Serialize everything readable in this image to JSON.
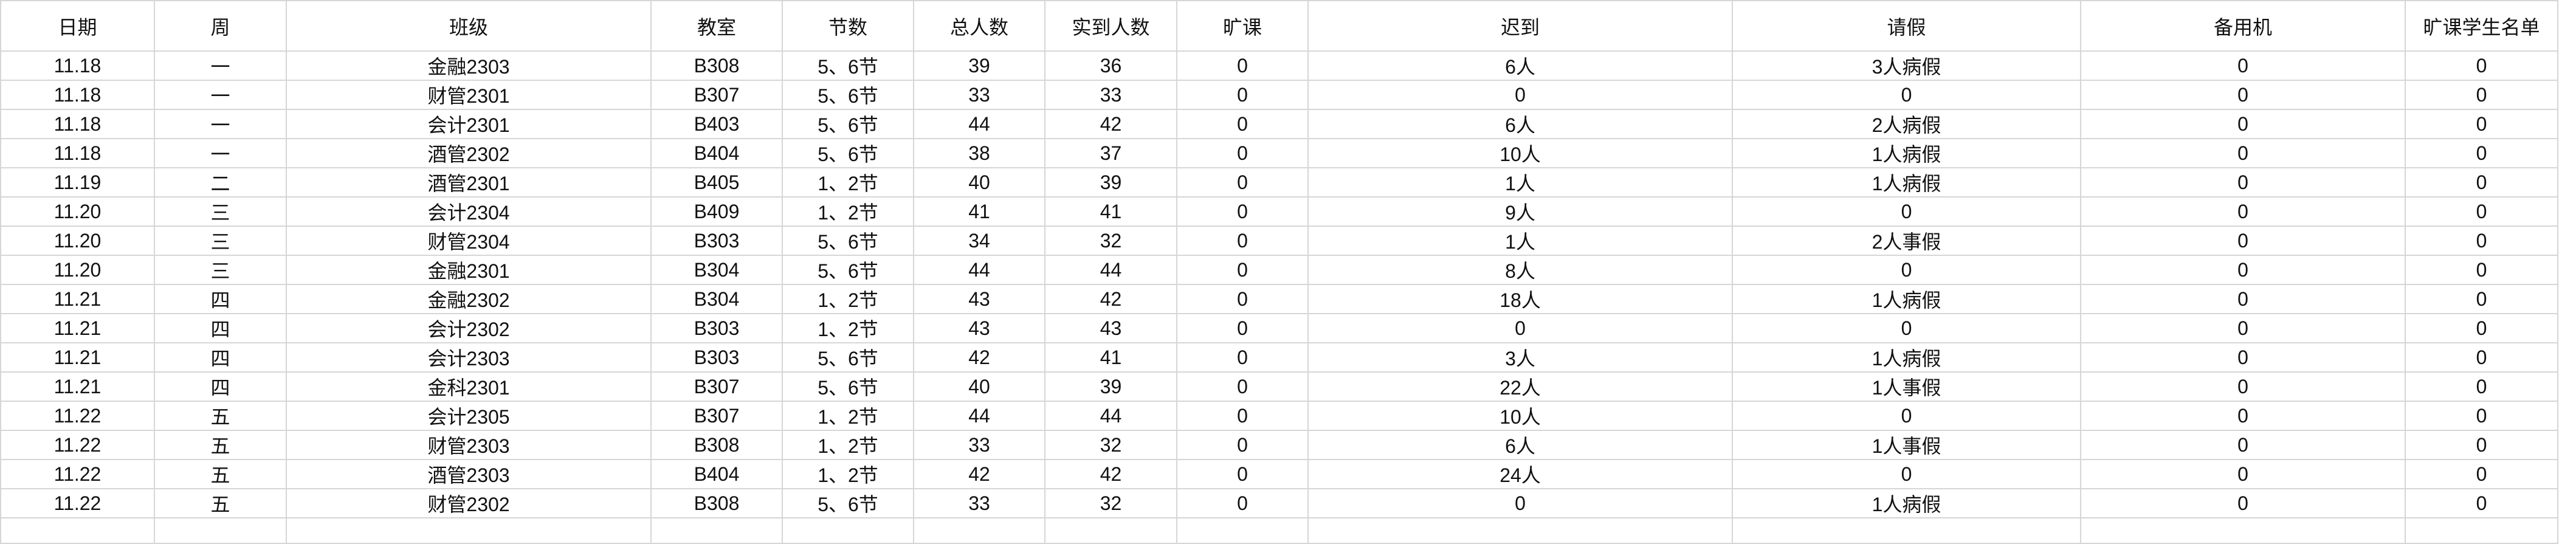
{
  "columns": [
    "日期",
    "周",
    "班级",
    "教室",
    "节数",
    "总人数",
    "实到人数",
    "旷课",
    "迟到",
    "请假",
    "备用机",
    "旷课学生名单"
  ],
  "rows": [
    [
      "11.18",
      "一",
      "金融2303",
      "B308",
      "5、6节",
      "39",
      "36",
      "0",
      "6人",
      "3人病假",
      "0",
      "0"
    ],
    [
      "11.18",
      "一",
      "财管2301",
      "B307",
      "5、6节",
      "33",
      "33",
      "0",
      "0",
      "0",
      "0",
      "0"
    ],
    [
      "11.18",
      "一",
      "会计2301",
      "B403",
      "5、6节",
      "44",
      "42",
      "0",
      "6人",
      "2人病假",
      "0",
      "0"
    ],
    [
      "11.18",
      "一",
      "酒管2302",
      "B404",
      "5、6节",
      "38",
      "37",
      "0",
      "10人",
      "1人病假",
      "0",
      "0"
    ],
    [
      "11.19",
      "二",
      "酒管2301",
      "B405",
      "1、2节",
      "40",
      "39",
      "0",
      "1人",
      "1人病假",
      "0",
      "0"
    ],
    [
      "11.20",
      "三",
      "会计2304",
      "B409",
      "1、2节",
      "41",
      "41",
      "0",
      "9人",
      "0",
      "0",
      "0"
    ],
    [
      "11.20",
      "三",
      "财管2304",
      "B303",
      "5、6节",
      "34",
      "32",
      "0",
      "1人",
      "2人事假",
      "0",
      "0"
    ],
    [
      "11.20",
      "三",
      "金融2301",
      "B304",
      "5、6节",
      "44",
      "44",
      "0",
      "8人",
      "0",
      "0",
      "0"
    ],
    [
      "11.21",
      "四",
      "金融2302",
      "B304",
      "1、2节",
      "43",
      "42",
      "0",
      "18人",
      "1人病假",
      "0",
      "0"
    ],
    [
      "11.21",
      "四",
      "会计2302",
      "B303",
      "1、2节",
      "43",
      "43",
      "0",
      "0",
      "0",
      "0",
      "0"
    ],
    [
      "11.21",
      "四",
      "会计2303",
      "B303",
      "5、6节",
      "42",
      "41",
      "0",
      "3人",
      "1人病假",
      "0",
      "0"
    ],
    [
      "11.21",
      "四",
      "金科2301",
      "B307",
      "5、6节",
      "40",
      "39",
      "0",
      "22人",
      "1人事假",
      "0",
      "0"
    ],
    [
      "11.22",
      "五",
      "会计2305",
      "B307",
      "1、2节",
      "44",
      "44",
      "0",
      "10人",
      "0",
      "0",
      "0"
    ],
    [
      "11.22",
      "五",
      "财管2303",
      "B308",
      "1、2节",
      "33",
      "32",
      "0",
      "6人",
      "1人事假",
      "0",
      "0"
    ],
    [
      "11.22",
      "五",
      "酒管2303",
      "B404",
      "1、2节",
      "42",
      "42",
      "0",
      "24人",
      "0",
      "0",
      "0"
    ],
    [
      "11.22",
      "五",
      "财管2302",
      "B308",
      "5、6节",
      "33",
      "32",
      "0",
      "0",
      "1人病假",
      "0",
      "0"
    ]
  ],
  "colors": {
    "grid": "#d6d6d6",
    "text": "#111111"
  }
}
